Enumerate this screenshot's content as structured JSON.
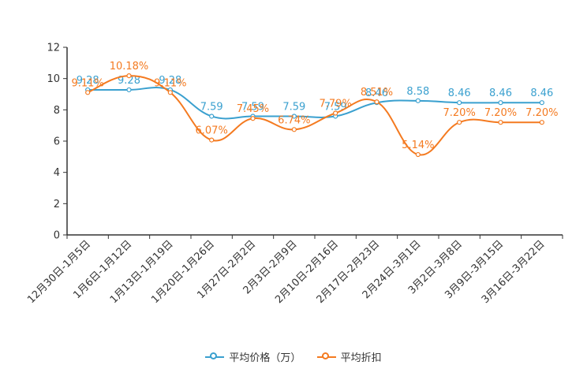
{
  "chart_data": {
    "type": "line",
    "categories": [
      "12月30日-1月5日",
      "1月6日-1月12日",
      "1月13日-1月19日",
      "1月20日-1月26日",
      "1月27日-2月2日",
      "2月3日-2月9日",
      "2月10日-2月16日",
      "2月17日-2月23日",
      "2月24日-3月1日",
      "3月2日-3月8日",
      "3月9日-3月15日",
      "3月16日-3月22日"
    ],
    "series": [
      {
        "name": "平均价格（万）",
        "color": "#3aa0cf",
        "values": [
          9.28,
          9.28,
          9.28,
          7.59,
          7.59,
          7.59,
          7.59,
          8.46,
          8.58,
          8.46,
          8.46,
          8.46
        ],
        "labels": [
          "9.28",
          "9.28",
          "9.28",
          "7.59",
          "7.59",
          "7.59",
          "7.59",
          "8.46",
          "8.58",
          "8.46",
          "8.46",
          "8.46"
        ]
      },
      {
        "name": "平均折扣",
        "color": "#f47a20",
        "values": [
          9.11,
          10.18,
          9.11,
          6.07,
          7.45,
          6.74,
          7.79,
          8.51,
          5.14,
          7.2,
          7.2,
          7.2
        ],
        "labels": [
          "9.11%",
          "10.18%",
          "9.11%",
          "6.07%",
          "7.45%",
          "6.74%",
          "7.79%",
          "8.51%",
          "5.14%",
          "7.20%",
          "7.20%",
          "7.20%"
        ]
      }
    ],
    "y_ticks": [
      "0",
      "2",
      "4",
      "6",
      "8",
      "10",
      "12"
    ],
    "ylim": [
      0,
      12
    ],
    "title": "",
    "xlabel": "",
    "ylabel": "",
    "legend_position": "bottom-center",
    "grid": false
  }
}
